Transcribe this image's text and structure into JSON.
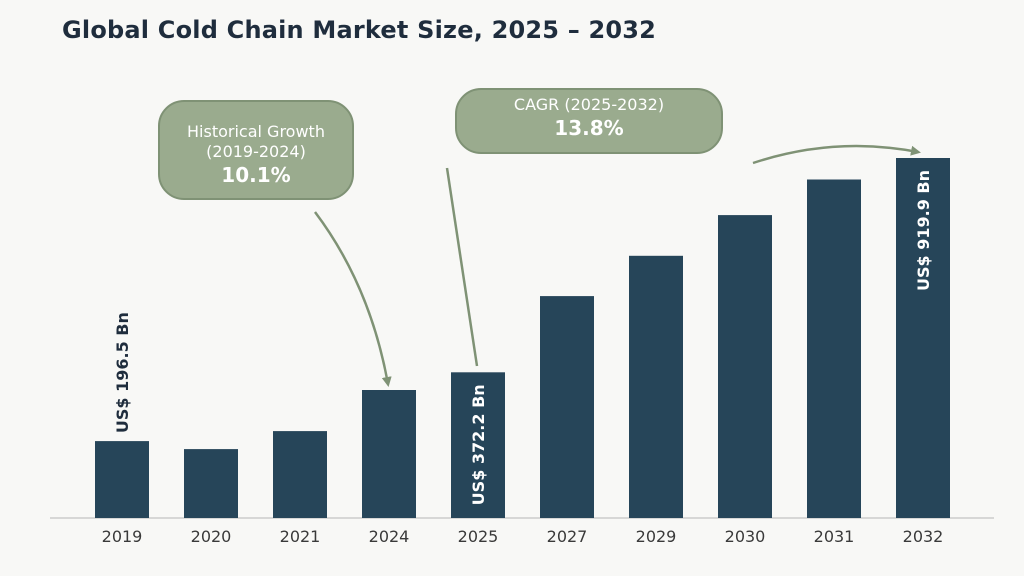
{
  "title": "Global Cold Chain Market Size, 2025 – 2032",
  "callouts": {
    "historical": {
      "label_line1": "Historical Growth",
      "label_line2": "(2019-2024)",
      "value": "10.1%"
    },
    "cagr": {
      "label": "CAGR (2025-2032)",
      "value": "13.8%"
    }
  },
  "colors": {
    "bar": "#264559",
    "callout_fill": "#9aab8e",
    "arrow": "#7f9275",
    "axis": "#cccccc"
  },
  "chart_data": {
    "type": "bar",
    "title": "Global Cold Chain Market Size, 2025 – 2032",
    "xlabel": "",
    "ylabel": "",
    "categories": [
      "2019",
      "2020",
      "2021",
      "2024",
      "2025",
      "2027",
      "2029",
      "2030",
      "2031",
      "2032"
    ],
    "values": [
      196.5,
      176,
      222,
      327,
      372.2,
      567,
      670,
      774,
      865,
      919.9
    ],
    "data_labels": [
      {
        "index": 0,
        "text": "US$ 196.5 Bn",
        "position": "above"
      },
      {
        "index": 4,
        "text": "US$ 372.2 Bn",
        "position": "inside"
      },
      {
        "index": 9,
        "text": "US$ 919.9 Bn",
        "position": "inside"
      }
    ],
    "ylim": [
      0,
      1000
    ],
    "grid": false,
    "legend": "none"
  }
}
